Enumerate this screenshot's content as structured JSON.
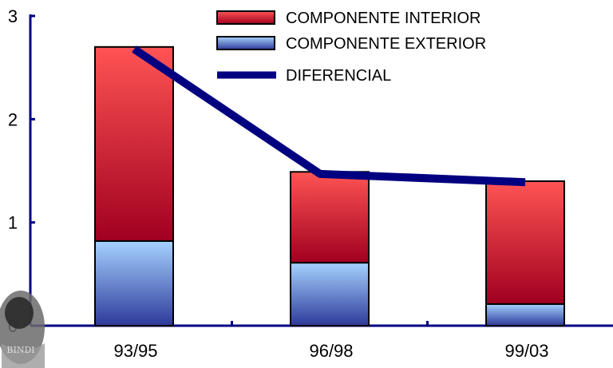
{
  "chart_data": {
    "type": "bar",
    "stacked": true,
    "categories": [
      "93/95",
      "96/98",
      "99/03"
    ],
    "series": [
      {
        "name": "COMPONENTE EXTERIOR",
        "values": [
          0.82,
          0.61,
          0.21
        ],
        "color_top": "#9ecbff",
        "color_bottom": "#2e3a9a"
      },
      {
        "name": "COMPONENTE INTERIOR",
        "values": [
          1.88,
          0.88,
          1.19
        ],
        "color_top": "#ff5050",
        "color_bottom": "#a00020"
      }
    ],
    "line_series": {
      "name": "DIFERENCIAL",
      "values": [
        2.68,
        1.47,
        1.39
      ],
      "color": "#000080"
    },
    "ylim": [
      0,
      3
    ],
    "yticks": [
      "0",
      "1",
      "2",
      "3"
    ],
    "legend_position": "top-right",
    "legend": [
      {
        "label": "COMPONENTE INTERIOR",
        "kind": "interior-bar"
      },
      {
        "label": "COMPONENTE EXTERIOR",
        "kind": "exterior-bar"
      },
      {
        "label": "DIFERENCIAL",
        "kind": "line"
      }
    ],
    "watermark": "BINDI"
  }
}
